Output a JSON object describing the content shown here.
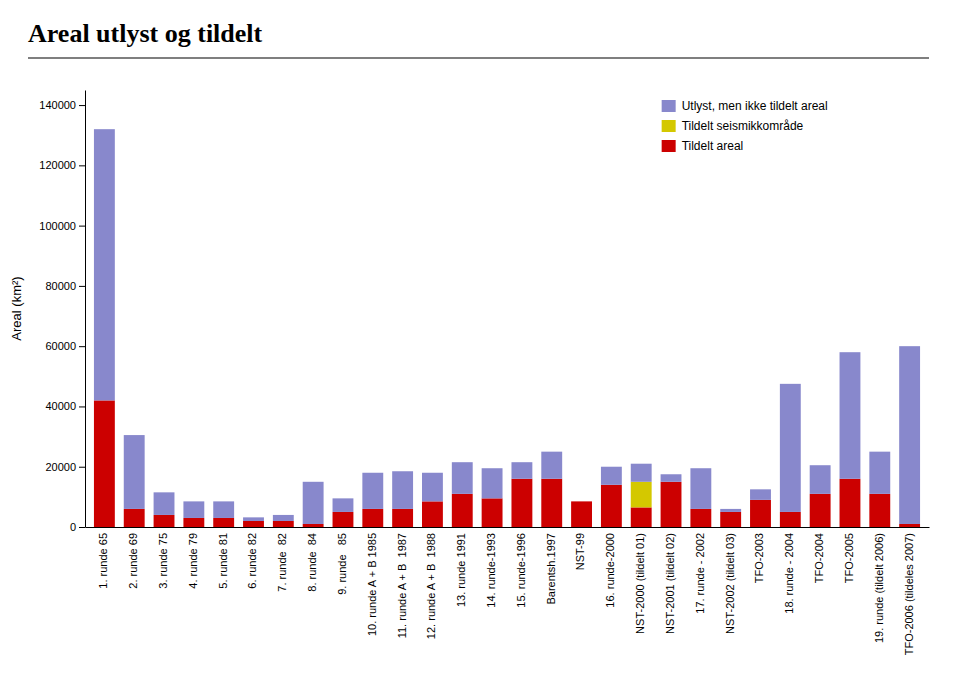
{
  "chart_data": {
    "type": "bar",
    "stacked": true,
    "title": "Areal utlyst og tildelt",
    "ylabel": "Areal (km²)",
    "categories": [
      "1. runde 65",
      "2. runde 69",
      "3. runde 75",
      "4. runde 79",
      "5. runde 81",
      "6. runde 82",
      "7. runde  82",
      "8. runde  84",
      "9. runde   85",
      "10. runde A + B 1985",
      "11. runde A + B  1987",
      "12. runde A + B  1988",
      "13. runde 1991",
      "14. runde-1993",
      "15. runde-1996",
      "Barentsh.1997",
      "NST-99",
      "16. runde-2000",
      "NST-2000 (tildelt 01)",
      "NST-2001 (tildelt 02)",
      "17. runde - 2002",
      "NST-2002 (tildelt 03)",
      "TFO-2003",
      "18. runde - 2004",
      "TFO-2004",
      "TFO-2005",
      "19. runde (tildelt 2006)",
      "TFO-2006 (tildeles 2007)"
    ],
    "series": [
      {
        "name": "Tildelt areal",
        "color": "#cc0000",
        "values": [
          42000,
          6000,
          4000,
          3000,
          3000,
          2000,
          2000,
          1000,
          5000,
          6000,
          6000,
          8500,
          11000,
          9500,
          16000,
          16000,
          8500,
          14000,
          6500,
          15000,
          6000,
          5000,
          9000,
          5000,
          11000,
          16000,
          11000,
          1000
        ]
      },
      {
        "name": "Tildelt seismikkområde",
        "color": "#d4c800",
        "values": [
          0,
          0,
          0,
          0,
          0,
          0,
          0,
          0,
          0,
          0,
          0,
          0,
          0,
          0,
          0,
          0,
          0,
          0,
          8500,
          0,
          0,
          0,
          0,
          0,
          0,
          0,
          0,
          0
        ]
      },
      {
        "name": "Utlyst, men ikke tildelt areal",
        "color": "#8888cc",
        "values": [
          90000,
          24500,
          7500,
          5500,
          5500,
          1200,
          2000,
          14000,
          4500,
          12000,
          12500,
          9500,
          10500,
          10000,
          5500,
          9000,
          0,
          6000,
          6000,
          2500,
          13500,
          1000,
          3500,
          42500,
          9500,
          42000,
          14000,
          59000
        ]
      }
    ],
    "ylim": [
      0,
      145000
    ],
    "yticks": [
      0,
      20000,
      40000,
      60000,
      80000,
      100000,
      120000,
      140000
    ],
    "legend": "upper right",
    "grid": false
  }
}
